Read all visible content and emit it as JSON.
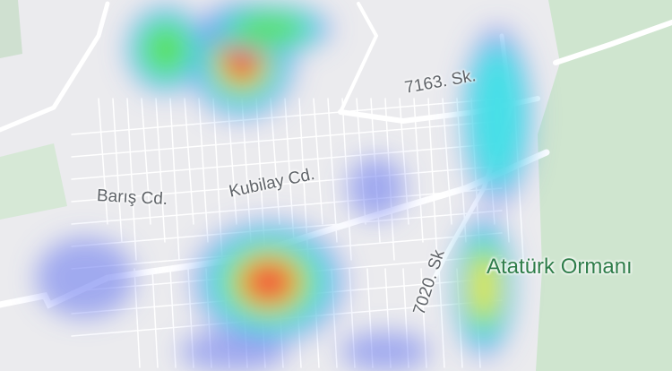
{
  "map": {
    "street_labels": [
      "Barış Cd.",
      "Kubilay Cd.",
      "7163. Sk.",
      "7020. Sk"
    ],
    "park_label": "Atatürk Ormanı",
    "colors": {
      "background": "#ebebee",
      "road": "#ffffff",
      "park": "#cfe5cf",
      "heat_low": "#6e7ff0",
      "heat_mid": "#3ee6e6",
      "heat_green": "#5fe05a",
      "heat_yellow": "#f2e64a",
      "heat_high": "#f2463c"
    }
  }
}
